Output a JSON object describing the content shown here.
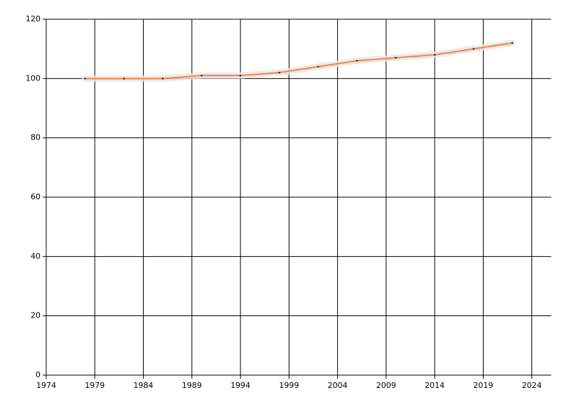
{
  "chart_data": {
    "type": "line",
    "x": [
      1978,
      1982,
      1986,
      1990,
      1994,
      1998,
      2002,
      2006,
      2010,
      2014,
      2018,
      2022
    ],
    "series": [
      {
        "color": "#ff7f3f",
        "values": [
          100,
          100,
          100,
          101,
          101,
          102,
          104,
          106,
          107,
          108,
          110,
          112
        ]
      }
    ],
    "xlim": [
      1974,
      2026
    ],
    "xticks": [
      1974,
      1979,
      1984,
      1989,
      1994,
      1999,
      2004,
      2009,
      2014,
      2019,
      2024
    ],
    "ylim": [
      0,
      120
    ],
    "yticks": [
      0,
      20,
      40,
      60,
      80,
      100,
      120
    ],
    "grid": true
  }
}
